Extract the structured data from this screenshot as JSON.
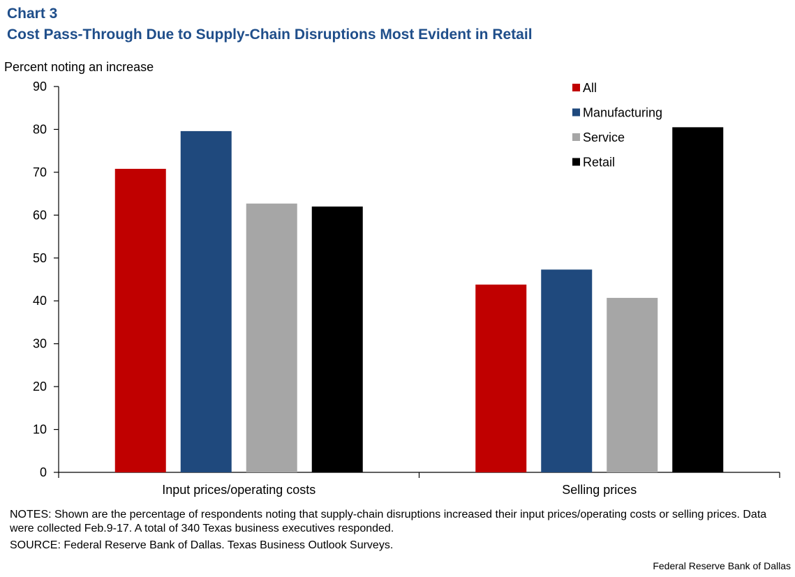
{
  "header": {
    "chart_label": "Chart 3",
    "title": "Cost Pass-Through Due to Supply-Chain Disruptions Most Evident in Retail"
  },
  "footer": {
    "notes": "NOTES: Shown are the percentage of respondents noting that supply-chain disruptions increased their input prices/operating costs or selling prices. Data were collected Feb.9-17. A total of 340 Texas business executives responded.",
    "source": "SOURCE: Federal Reserve Bank of Dallas. Texas Business Outlook Surveys.",
    "credit": "Federal Reserve  Bank of Dallas"
  },
  "chart_data": {
    "type": "bar",
    "title": "Cost Pass-Through Due to Supply-Chain Disruptions Most Evident in Retail",
    "ylabel": "Percent noting  an increase",
    "xlabel": "",
    "ylim": [
      0,
      90
    ],
    "yticks": [
      0,
      10,
      20,
      30,
      40,
      50,
      60,
      70,
      80,
      90
    ],
    "categories": [
      "Input prices/operating costs",
      "Selling prices"
    ],
    "series": [
      {
        "name": "All",
        "color": "#c00000",
        "values": [
          70.8,
          43.8
        ]
      },
      {
        "name": "Manufacturing",
        "color": "#1f497d",
        "values": [
          79.6,
          47.3
        ]
      },
      {
        "name": "Service",
        "color": "#a6a6a6",
        "values": [
          62.7,
          40.7
        ]
      },
      {
        "name": "Retail",
        "color": "#000000",
        "values": [
          62.0,
          80.5
        ]
      }
    ],
    "legend_position": "top-right",
    "grid": false
  }
}
